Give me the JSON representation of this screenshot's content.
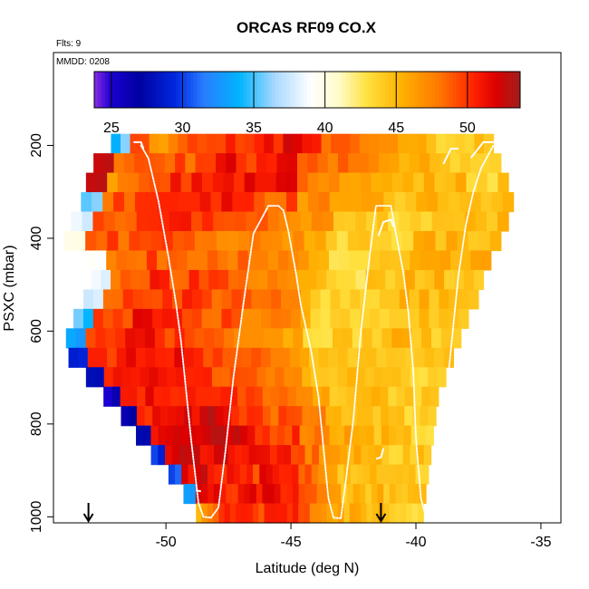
{
  "chart_data": {
    "type": "heatmap",
    "title": "ORCAS RF09 CO.X",
    "annotations": [
      "Flts: 9",
      "MMDD: 0208"
    ],
    "xlabel": "Latitude (deg N)",
    "ylabel": "PSXC (mbar)",
    "xlim": [
      -54.5,
      -34.2
    ],
    "ylim": [
      1013,
      0
    ],
    "x_ticks": [
      -50,
      -45,
      -40,
      -35
    ],
    "y_ticks": [
      200,
      400,
      600,
      800,
      1000
    ],
    "colorbar": {
      "min": 23.8,
      "max": 53.7,
      "ticks": [
        25,
        30,
        35,
        40,
        45,
        50
      ],
      "stops": [
        {
          "v": 23.8,
          "c": "#8a2be2"
        },
        {
          "v": 25.0,
          "c": "#1a00d0"
        },
        {
          "v": 27.0,
          "c": "#0000a0"
        },
        {
          "v": 29.5,
          "c": "#0028e0"
        },
        {
          "v": 31.5,
          "c": "#2a7dff"
        },
        {
          "v": 34.0,
          "c": "#00b4ff"
        },
        {
          "v": 36.5,
          "c": "#a9d9ff"
        },
        {
          "v": 39.0,
          "c": "#ffffff"
        },
        {
          "v": 41.0,
          "c": "#fffbc8"
        },
        {
          "v": 43.0,
          "c": "#ffe03c"
        },
        {
          "v": 45.5,
          "c": "#ffae00"
        },
        {
          "v": 48.0,
          "c": "#ff7800"
        },
        {
          "v": 50.5,
          "c": "#ff2000"
        },
        {
          "v": 52.0,
          "c": "#dc0000"
        },
        {
          "v": 53.7,
          "c": "#a01e1e"
        }
      ]
    },
    "curtain": {
      "p_top": 175,
      "p_bottom": 1013,
      "bins": 20,
      "lat_ranges": [
        [
          -52.2,
          -36.9
        ],
        [
          -52.9,
          -36.6
        ],
        [
          -53.2,
          -36.3
        ],
        [
          -53.4,
          -36.1
        ],
        [
          -53.8,
          -36.3
        ],
        [
          -54.1,
          -36.6
        ],
        [
          -53.2,
          -37.0
        ],
        [
          -53.0,
          -37.3
        ],
        [
          -53.3,
          -37.5
        ],
        [
          -53.7,
          -37.9
        ],
        [
          -54.0,
          -38.2
        ],
        [
          -53.9,
          -38.5
        ],
        [
          -53.2,
          -38.8
        ],
        [
          -52.5,
          -39.1
        ],
        [
          -51.8,
          -39.2
        ],
        [
          -51.2,
          -39.3
        ],
        [
          -50.6,
          -39.4
        ],
        [
          -49.9,
          -39.5
        ],
        [
          -49.3,
          -39.6
        ],
        [
          -48.8,
          -39.7
        ]
      ],
      "profiles": [
        [
          35,
          50,
          46,
          48,
          49,
          49,
          50,
          50,
          51,
          52,
          50,
          49,
          48,
          47,
          46,
          46,
          45,
          44,
          44,
          44
        ],
        [
          52,
          49,
          49,
          49,
          49,
          50,
          51,
          50,
          51,
          52,
          49,
          48,
          48,
          47,
          46,
          45,
          45,
          44,
          44,
          44
        ],
        [
          52,
          47,
          49,
          50,
          50,
          51,
          51,
          51,
          50,
          51,
          48,
          48,
          47,
          46,
          45,
          45,
          45,
          45,
          44,
          44
        ],
        [
          35,
          49,
          49,
          50,
          51,
          51,
          51,
          50,
          49,
          49,
          47,
          47,
          45,
          45,
          44,
          45,
          45,
          45,
          44,
          45
        ],
        [
          38,
          49,
          49,
          49,
          50,
          50,
          50,
          49,
          48,
          48,
          47,
          47,
          44,
          44,
          44,
          44,
          44,
          45,
          45,
          45
        ],
        [
          39,
          48,
          49,
          49,
          49,
          50,
          49,
          48,
          47,
          48,
          47,
          46,
          43,
          44,
          44,
          44,
          45,
          45,
          45,
          45
        ],
        [
          40,
          48,
          48,
          49,
          49,
          49,
          49,
          48,
          47,
          47,
          46,
          45,
          43,
          43,
          44,
          44,
          45,
          45,
          45,
          45
        ],
        [
          39,
          48,
          48,
          50,
          49,
          50,
          49,
          48,
          47,
          47,
          46,
          45,
          44,
          43,
          44,
          44,
          45,
          45,
          45,
          45
        ],
        [
          37,
          49,
          49,
          50,
          50,
          50,
          49,
          49,
          48,
          48,
          47,
          45,
          44,
          44,
          44,
          44,
          45,
          45,
          45,
          44
        ],
        [
          35,
          49,
          49,
          51,
          50,
          50,
          49,
          49,
          48,
          48,
          47,
          46,
          44,
          44,
          44,
          44,
          45,
          45,
          44,
          44
        ],
        [
          33,
          49,
          49,
          51,
          51,
          50,
          49,
          49,
          48,
          48,
          47,
          46,
          44,
          44,
          44,
          44,
          45,
          45,
          44,
          44
        ],
        [
          30,
          50,
          50,
          51,
          51,
          51,
          50,
          49,
          48,
          48,
          48,
          47,
          45,
          44,
          44,
          44,
          45,
          45,
          44,
          44
        ],
        [
          27,
          51,
          51,
          51,
          51,
          51,
          50,
          49,
          49,
          48,
          48,
          47,
          45,
          45,
          45,
          44,
          45,
          45,
          44,
          44
        ],
        [
          26,
          51,
          51,
          51,
          51,
          51,
          50,
          50,
          49,
          49,
          48,
          47,
          46,
          45,
          45,
          44,
          45,
          44,
          44,
          44
        ],
        [
          26,
          51,
          51,
          51,
          52,
          52,
          51,
          50,
          50,
          49,
          49,
          48,
          47,
          45,
          45,
          45,
          45,
          44,
          44,
          44
        ],
        [
          28,
          52,
          52,
          52,
          52,
          52,
          52,
          51,
          50,
          50,
          50,
          48,
          48,
          46,
          46,
          45,
          45,
          44,
          44,
          44
        ],
        [
          29,
          52,
          52,
          52,
          52,
          52,
          51,
          51,
          51,
          50,
          49,
          48,
          47,
          46,
          45,
          45,
          45,
          44,
          44,
          44
        ],
        [
          31,
          52,
          52,
          51,
          51,
          51,
          50,
          51,
          50,
          50,
          49,
          48,
          47,
          45,
          45,
          45,
          45,
          44,
          44,
          44
        ],
        [
          33,
          52,
          51,
          50,
          50,
          51,
          51,
          51,
          50,
          50,
          49,
          47,
          46,
          45,
          45,
          45,
          45,
          44,
          44,
          44
        ],
        [
          46,
          48,
          51,
          51,
          51,
          50,
          51,
          50,
          51,
          49,
          48,
          47,
          46,
          45,
          45,
          45,
          45,
          44,
          44,
          44
        ]
      ],
      "noise": 1.2
    },
    "flight_track": [
      [
        -51.0,
        200
      ],
      [
        -50.7,
        228
      ],
      [
        -50.3,
        320
      ],
      [
        -49.9,
        440
      ],
      [
        -49.6,
        540
      ],
      [
        -49.4,
        620
      ],
      [
        -49.0,
        830
      ],
      [
        -48.7,
        970
      ],
      [
        -48.5,
        1000
      ],
      [
        -48.2,
        1002
      ],
      [
        -47.9,
        980
      ],
      [
        -47.6,
        850
      ],
      [
        -47.3,
        700
      ],
      [
        -46.9,
        540
      ],
      [
        -46.5,
        390
      ],
      [
        -46.2,
        360
      ],
      [
        -45.9,
        330
      ],
      [
        -45.5,
        330
      ],
      [
        -45.3,
        340
      ],
      [
        -45.1,
        385
      ],
      [
        -44.8,
        475
      ],
      [
        -44.6,
        545
      ],
      [
        -44.2,
        640
      ],
      [
        -43.9,
        740
      ],
      [
        -43.7,
        850
      ],
      [
        -43.5,
        960
      ],
      [
        -43.3,
        1002
      ],
      [
        -43.0,
        1003
      ],
      [
        -42.8,
        920
      ],
      [
        -42.5,
        790
      ],
      [
        -42.2,
        600
      ],
      [
        -41.9,
        460
      ],
      [
        -41.6,
        330
      ],
      [
        -41.0,
        330
      ],
      [
        -40.8,
        390
      ],
      [
        -40.5,
        475
      ],
      [
        -40.3,
        560
      ],
      [
        -40.1,
        690
      ],
      [
        -40.0,
        830
      ],
      [
        -39.8,
        960
      ],
      [
        -39.6,
        1000
      ],
      [
        -39.3,
        980
      ],
      [
        -39.0,
        850
      ],
      [
        -38.6,
        640
      ],
      [
        -38.3,
        480
      ],
      [
        -38.0,
        370
      ],
      [
        -37.7,
        300
      ],
      [
        -37.4,
        250
      ],
      [
        -37.1,
        220
      ],
      [
        -36.9,
        200
      ]
    ],
    "arrows_lat": [
      -53.1,
      -41.4
    ],
    "white_overlays": [
      [
        [
          -51.3,
          193
        ],
        [
          -51.0,
          193
        ],
        [
          -50.9,
          207
        ]
      ],
      [
        [
          -37.8,
          227
        ],
        [
          -37.3,
          193
        ],
        [
          -36.6,
          193
        ]
      ],
      [
        [
          -38.9,
          240
        ],
        [
          -38.6,
          207
        ],
        [
          -38.3,
          207
        ]
      ],
      [
        [
          -41.5,
          395
        ],
        [
          -41.3,
          365
        ],
        [
          -41.0,
          360
        ],
        [
          -40.9,
          375
        ]
      ],
      [
        [
          -48.8,
          943
        ],
        [
          -48.6,
          945
        ]
      ],
      [
        [
          -41.6,
          875
        ],
        [
          -41.4,
          872
        ],
        [
          -41.3,
          853
        ]
      ]
    ]
  }
}
